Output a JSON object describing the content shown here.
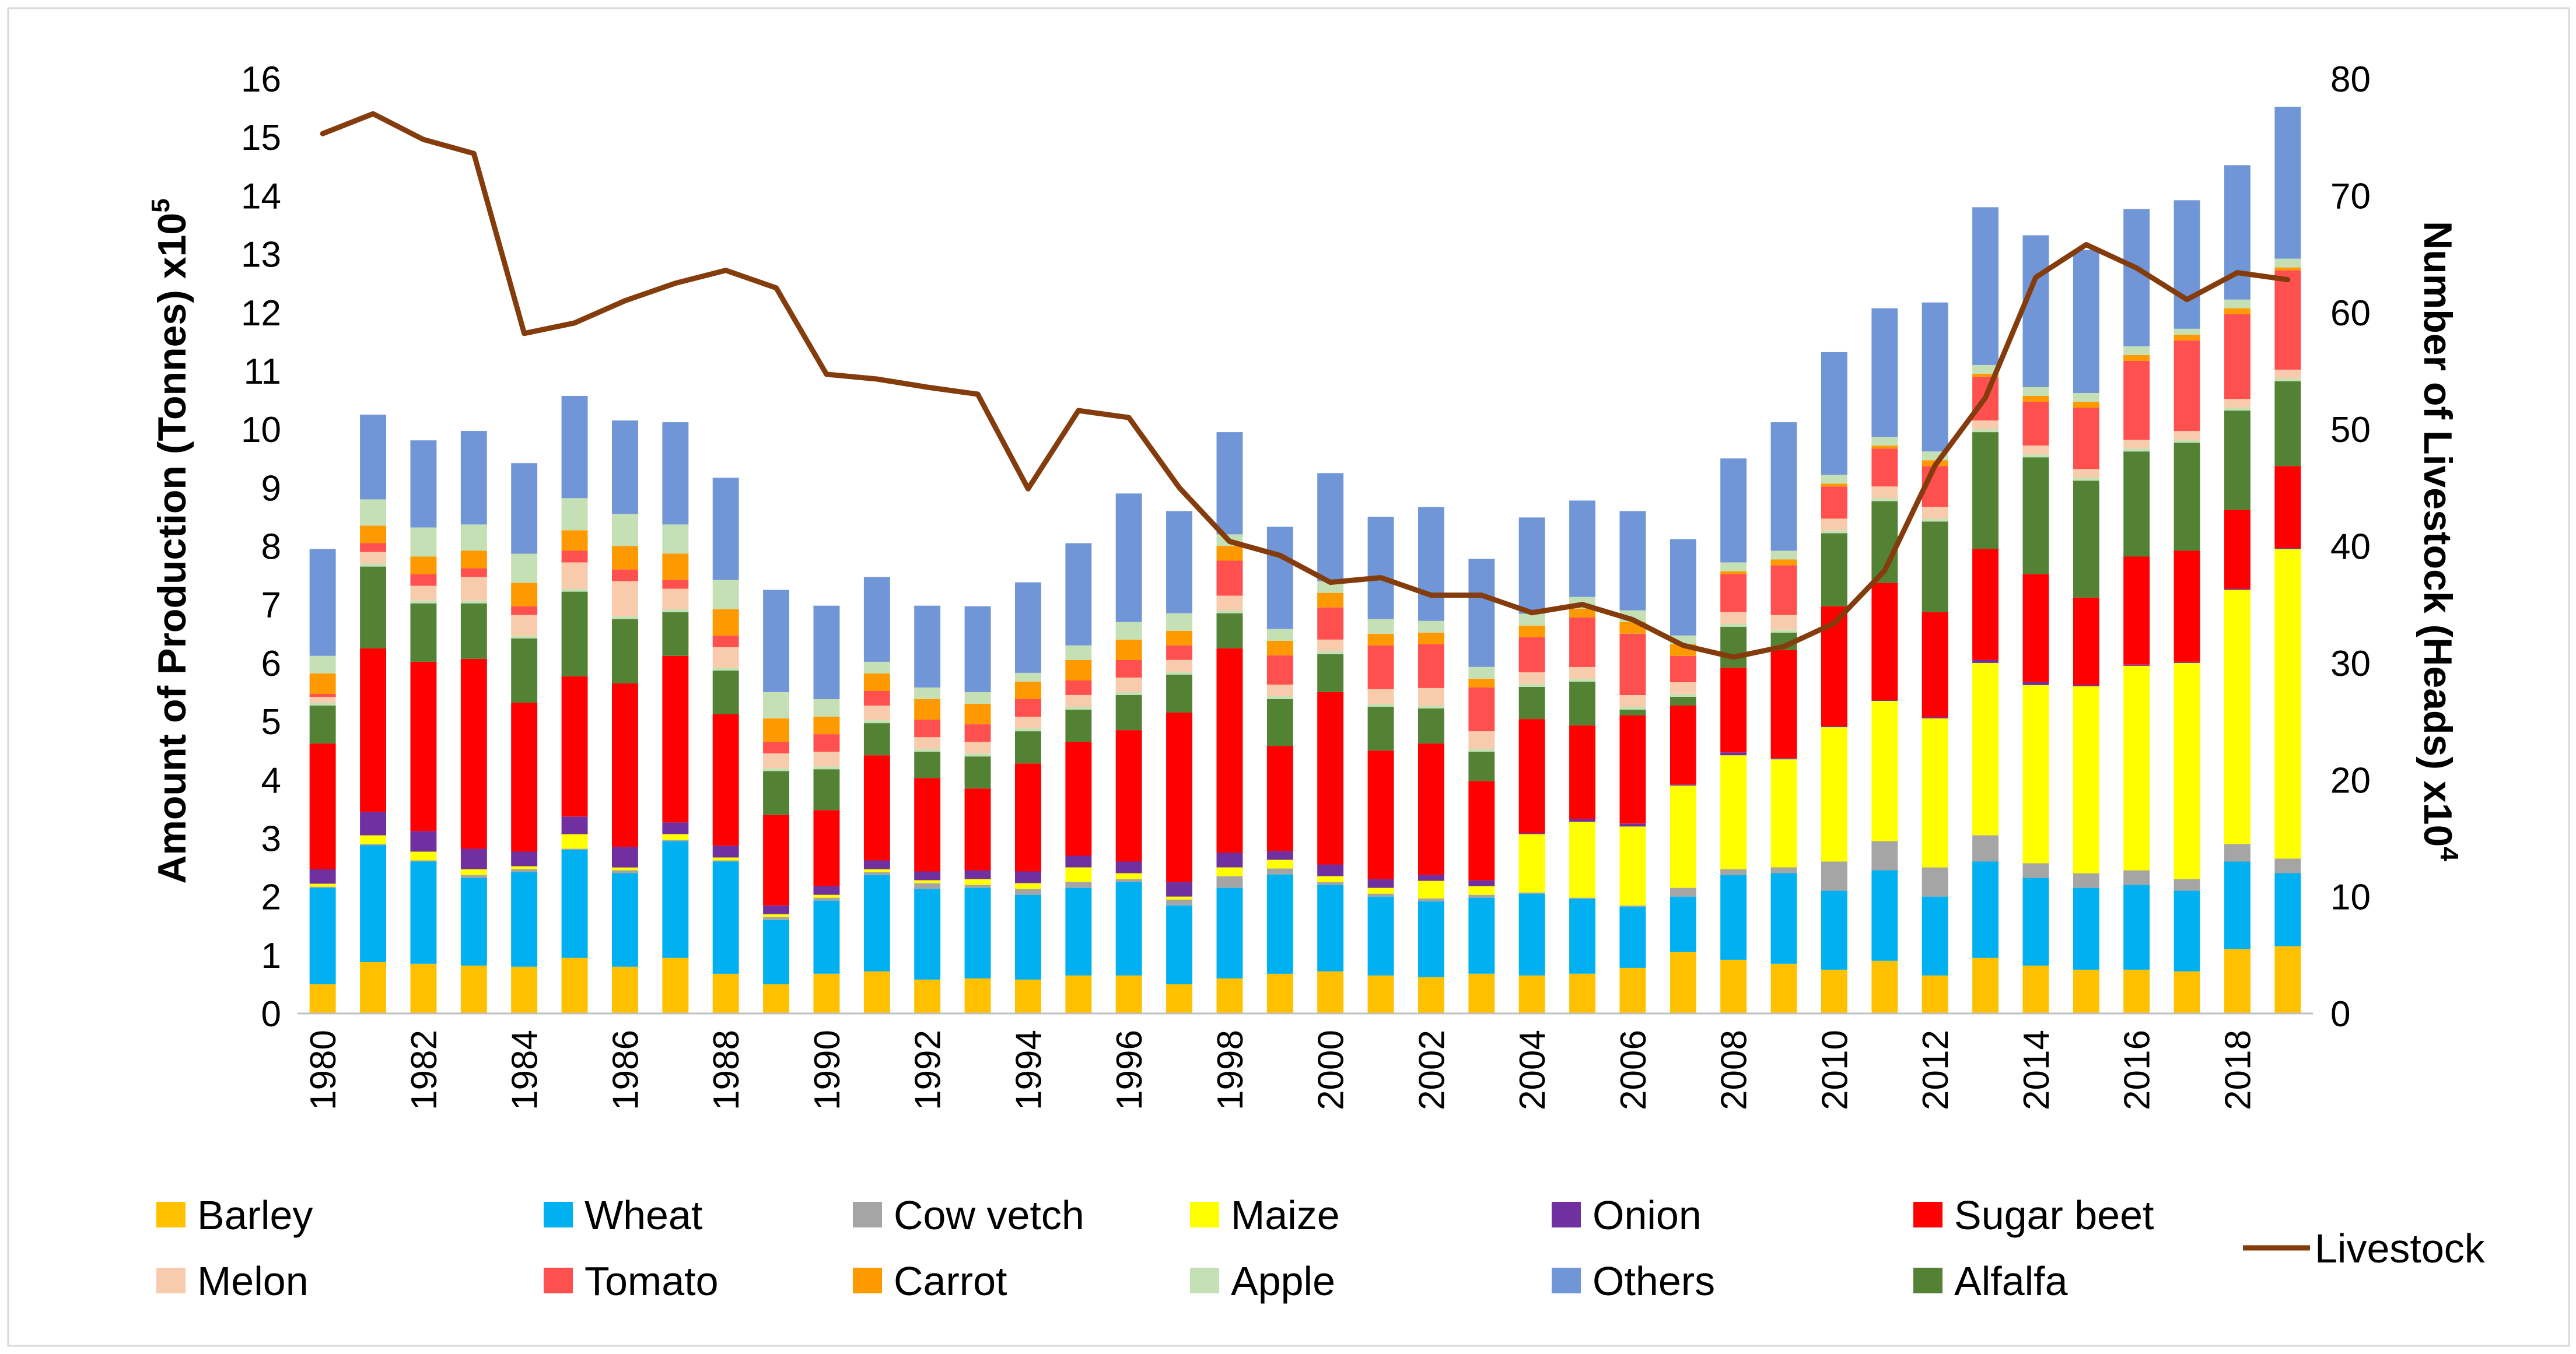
{
  "chart_data": {
    "type": "stacked-bar-with-line",
    "title": "",
    "years": [
      1980,
      1981,
      1982,
      1983,
      1984,
      1985,
      1986,
      1987,
      1988,
      1989,
      1990,
      1991,
      1992,
      1993,
      1994,
      1995,
      1996,
      1997,
      1998,
      1999,
      2000,
      2001,
      2002,
      2003,
      2004,
      2005,
      2006,
      2007,
      2008,
      2009,
      2010,
      2011,
      2012,
      2013,
      2014,
      2015,
      2016,
      2017,
      2018,
      2019
    ],
    "x_tick_labels": [
      "1980",
      "1982",
      "1984",
      "1986",
      "1988",
      "1990",
      "1992",
      "1994",
      "1996",
      "1998",
      "2000",
      "2002",
      "2004",
      "2006",
      "2008",
      "2010",
      "2012",
      "2014",
      "2016",
      "2018"
    ],
    "y_left": {
      "label": "Amount of  Production (Tonnes) x10",
      "label_exponent": "5",
      "ylim": [
        0,
        16
      ],
      "ticks": [
        "0",
        "1",
        "2",
        "3",
        "4",
        "5",
        "6",
        "7",
        "8",
        "9",
        "10",
        "11",
        "12",
        "13",
        "14",
        "15",
        "16"
      ]
    },
    "y_right": {
      "label": "Number of  Livestock (Heads)  x10",
      "label_exponent": "4",
      "ylim": [
        0,
        80
      ],
      "ticks": [
        "0",
        "10",
        "20",
        "30",
        "40",
        "50",
        "60",
        "70",
        "80"
      ]
    },
    "series": [
      {
        "name": "Barley",
        "color": "#FFC000",
        "values": [
          0.5,
          0.88,
          0.85,
          0.82,
          0.8,
          0.95,
          0.8,
          0.95,
          0.68,
          0.5,
          0.68,
          0.72,
          0.58,
          0.6,
          0.58,
          0.65,
          0.65,
          0.5,
          0.6,
          0.68,
          0.72,
          0.65,
          0.62,
          0.68,
          0.65,
          0.68,
          0.78,
          1.05,
          0.92,
          0.85,
          0.75,
          0.9,
          0.65,
          0.95,
          0.82,
          0.75,
          0.75,
          0.72,
          1.1,
          1.15
        ]
      },
      {
        "name": "Wheat",
        "color": "#00B0F0",
        "values": [
          1.65,
          2.0,
          1.75,
          1.5,
          1.62,
          1.85,
          1.6,
          2.0,
          1.92,
          1.1,
          1.25,
          1.65,
          1.55,
          1.55,
          1.45,
          1.5,
          1.6,
          1.35,
          1.55,
          1.7,
          1.48,
          1.35,
          1.3,
          1.3,
          1.4,
          1.28,
          1.05,
          0.95,
          1.45,
          1.55,
          1.35,
          1.55,
          1.35,
          1.65,
          1.5,
          1.4,
          1.45,
          1.38,
          1.5,
          1.25
        ]
      },
      {
        "name": "Cow vetch",
        "color": "#A5A5A5",
        "values": [
          0.02,
          0.02,
          0.02,
          0.05,
          0.05,
          0.02,
          0.05,
          0.02,
          0.02,
          0.05,
          0.05,
          0.05,
          0.1,
          0.05,
          0.1,
          0.1,
          0.05,
          0.1,
          0.2,
          0.1,
          0.05,
          0.05,
          0.05,
          0.05,
          0.02,
          0.02,
          0.02,
          0.15,
          0.1,
          0.1,
          0.5,
          0.5,
          0.5,
          0.45,
          0.25,
          0.25,
          0.25,
          0.2,
          0.3,
          0.25
        ]
      },
      {
        "name": "Maize",
        "color": "#FFFF00",
        "values": [
          0.05,
          0.15,
          0.15,
          0.1,
          0.05,
          0.25,
          0.05,
          0.1,
          0.05,
          0.05,
          0.05,
          0.05,
          0.05,
          0.1,
          0.1,
          0.25,
          0.1,
          0.05,
          0.15,
          0.15,
          0.1,
          0.1,
          0.3,
          0.15,
          1.0,
          1.3,
          1.35,
          1.75,
          1.95,
          1.85,
          2.3,
          2.4,
          2.55,
          2.95,
          3.05,
          3.2,
          3.5,
          3.7,
          4.35,
          5.3
        ]
      },
      {
        "name": "Onion",
        "color": "#7030A0",
        "values": [
          0.25,
          0.4,
          0.35,
          0.35,
          0.25,
          0.3,
          0.35,
          0.2,
          0.2,
          0.15,
          0.15,
          0.15,
          0.15,
          0.15,
          0.2,
          0.2,
          0.2,
          0.25,
          0.25,
          0.15,
          0.2,
          0.15,
          0.1,
          0.1,
          0.02,
          0.05,
          0.05,
          0.02,
          0.05,
          0.02,
          0.02,
          0.02,
          0.02,
          0.05,
          0.05,
          0.02,
          0.02,
          0.02,
          0.02,
          0.02
        ]
      },
      {
        "name": "Sugar beet",
        "color": "#FF0000",
        "values": [
          2.15,
          2.8,
          2.9,
          3.25,
          2.55,
          2.4,
          2.8,
          2.85,
          2.25,
          1.55,
          1.3,
          1.8,
          1.6,
          1.4,
          1.85,
          1.95,
          2.25,
          2.9,
          3.5,
          1.8,
          2.95,
          2.2,
          2.25,
          1.7,
          1.95,
          1.6,
          1.85,
          1.35,
          1.45,
          1.85,
          2.05,
          2.0,
          1.8,
          1.9,
          1.85,
          1.5,
          1.85,
          1.9,
          1.35,
          1.4
        ]
      },
      {
        "name": "Alfalfa",
        "color": "#548235",
        "values": [
          0.65,
          1.4,
          1.0,
          0.95,
          1.1,
          1.45,
          1.1,
          0.75,
          0.75,
          0.75,
          0.7,
          0.55,
          0.45,
          0.55,
          0.55,
          0.55,
          0.6,
          0.65,
          0.6,
          0.8,
          0.65,
          0.75,
          0.6,
          0.5,
          0.55,
          0.75,
          0.1,
          0.15,
          0.7,
          0.3,
          1.25,
          1.4,
          1.55,
          2.0,
          2.0,
          2.0,
          1.8,
          1.85,
          1.7,
          1.45
        ]
      },
      {
        "name": "Apple",
        "color": "#C5E0B4",
        "values": [
          0.05,
          0.05,
          0.05,
          0.05,
          0.05,
          0.05,
          0.05,
          0.05,
          0.05,
          0.05,
          0.05,
          0.05,
          0.05,
          0.05,
          0.05,
          0.05,
          0.05,
          0.05,
          0.05,
          0.05,
          0.05,
          0.05,
          0.05,
          0.05,
          0.05,
          0.05,
          0.05,
          0.05,
          0.05,
          0.05,
          0.05,
          0.05,
          0.05,
          0.05,
          0.05,
          0.05,
          0.05,
          0.05,
          0.05,
          0.05
        ]
      },
      {
        "name": "Melon",
        "color": "#F8CBAD",
        "values": [
          0.1,
          0.2,
          0.25,
          0.4,
          0.35,
          0.45,
          0.6,
          0.35,
          0.35,
          0.25,
          0.25,
          0.25,
          0.2,
          0.2,
          0.2,
          0.2,
          0.25,
          0.2,
          0.25,
          0.2,
          0.2,
          0.25,
          0.3,
          0.3,
          0.2,
          0.2,
          0.2,
          0.2,
          0.2,
          0.25,
          0.2,
          0.2,
          0.2,
          0.15,
          0.15,
          0.15,
          0.15,
          0.15,
          0.15,
          0.15
        ]
      },
      {
        "name": "Tomato",
        "color": "#FF5050",
        "values": [
          0.05,
          0.15,
          0.2,
          0.15,
          0.15,
          0.2,
          0.2,
          0.15,
          0.2,
          0.2,
          0.3,
          0.25,
          0.3,
          0.3,
          0.3,
          0.25,
          0.3,
          0.25,
          0.6,
          0.5,
          0.55,
          0.75,
          0.75,
          0.75,
          0.6,
          0.85,
          1.05,
          0.45,
          0.65,
          0.85,
          0.55,
          0.65,
          0.7,
          0.75,
          0.75,
          1.05,
          1.35,
          1.55,
          1.45,
          1.7
        ]
      },
      {
        "name": "Carrot",
        "color": "#FF9900",
        "values": [
          0.35,
          0.3,
          0.3,
          0.3,
          0.4,
          0.35,
          0.4,
          0.45,
          0.45,
          0.4,
          0.3,
          0.3,
          0.35,
          0.35,
          0.3,
          0.35,
          0.35,
          0.25,
          0.25,
          0.25,
          0.25,
          0.2,
          0.2,
          0.15,
          0.2,
          0.15,
          0.2,
          0.2,
          0.05,
          0.1,
          0.05,
          0.05,
          0.1,
          0.05,
          0.1,
          0.1,
          0.1,
          0.1,
          0.1,
          0.05
        ]
      },
      {
        "name": "Apple",
        "color": "#C5E0B4",
        "values": [
          0.3,
          0.45,
          0.5,
          0.45,
          0.5,
          0.55,
          0.55,
          0.5,
          0.5,
          0.45,
          0.3,
          0.2,
          0.2,
          0.2,
          0.15,
          0.25,
          0.3,
          0.3,
          0.2,
          0.2,
          0.2,
          0.25,
          0.2,
          0.2,
          0.2,
          0.2,
          0.2,
          0.15,
          0.15,
          0.15,
          0.15,
          0.15,
          0.15,
          0.15,
          0.15,
          0.15,
          0.15,
          0.1,
          0.15,
          0.15
        ]
      },
      {
        "name": "Others",
        "color": "#7096D8",
        "values": [
          1.83,
          1.45,
          1.49,
          1.6,
          1.55,
          1.75,
          1.6,
          1.75,
          1.75,
          1.75,
          1.6,
          1.45,
          1.4,
          1.47,
          1.55,
          1.75,
          2.2,
          1.75,
          1.75,
          1.75,
          1.85,
          1.75,
          1.95,
          1.85,
          1.65,
          1.65,
          1.7,
          1.65,
          1.78,
          2.2,
          2.1,
          2.2,
          2.55,
          2.7,
          2.6,
          2.45,
          2.35,
          2.2,
          2.3,
          2.6
        ]
      },
      {
        "name": "Livestock",
        "color": "#843C0C",
        "axis": "right",
        "values": [
          75.3,
          77.0,
          74.8,
          73.6,
          58.2,
          59.1,
          61.0,
          62.5,
          63.6,
          62.1,
          54.7,
          54.3,
          53.6,
          53.0,
          44.9,
          51.6,
          51.0,
          45.0,
          40.4,
          39.2,
          36.9,
          37.3,
          35.8,
          35.8,
          34.3,
          35.0,
          33.7,
          31.5,
          30.5,
          31.4,
          33.4,
          37.9,
          46.9,
          52.7,
          63.0,
          65.8,
          63.8,
          61.1,
          63.4,
          62.8
        ]
      }
    ],
    "legend": {
      "position": "bottom",
      "items": [
        {
          "name": "Barley",
          "color": "#FFC000",
          "kind": "box"
        },
        {
          "name": "Wheat",
          "color": "#00B0F0",
          "kind": "box"
        },
        {
          "name": "Cow vetch",
          "color": "#A5A5A5",
          "kind": "box"
        },
        {
          "name": "Maize",
          "color": "#FFFF00",
          "kind": "box"
        },
        {
          "name": "Onion",
          "color": "#7030A0",
          "kind": "box"
        },
        {
          "name": "Sugar beet",
          "color": "#FF0000",
          "kind": "box"
        },
        {
          "name": "Melon",
          "color": "#F8CBAD",
          "kind": "box"
        },
        {
          "name": "Tomato",
          "color": "#FF5050",
          "kind": "box"
        },
        {
          "name": "Carrot",
          "color": "#FF9900",
          "kind": "box"
        },
        {
          "name": "Apple",
          "color": "#C5E0B4",
          "kind": "box"
        },
        {
          "name": "Others",
          "color": "#7096D8",
          "kind": "box"
        },
        {
          "name": "Alfalfa",
          "color": "#548235",
          "kind": "box"
        },
        {
          "name": "Livestock",
          "color": "#843C0C",
          "kind": "line"
        }
      ]
    }
  }
}
